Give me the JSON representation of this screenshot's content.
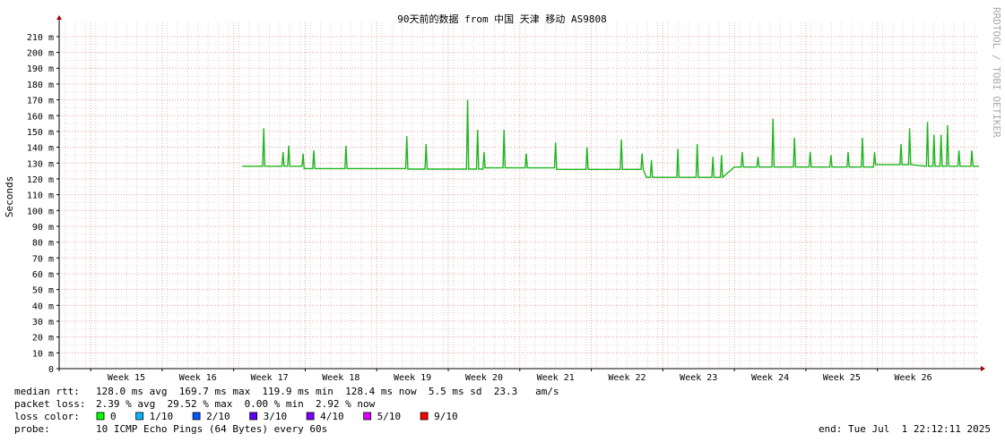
{
  "chart_data": {
    "type": "line",
    "title": "90天前的数据 from 中国 天津 移动 AS9808",
    "y_label": "Seconds",
    "watermark": "RRDTOOL / TOBI OETIKER",
    "xlim": [
      14.06,
      26.92
    ],
    "ylim": [
      0,
      0.219
    ],
    "xticks": [
      {
        "value": 15,
        "label": "Week 15"
      },
      {
        "value": 16,
        "label": "Week 16"
      },
      {
        "value": 17,
        "label": "Week 17"
      },
      {
        "value": 18,
        "label": "Week 18"
      },
      {
        "value": 19,
        "label": "Week 19"
      },
      {
        "value": 20,
        "label": "Week 20"
      },
      {
        "value": 21,
        "label": "Week 21"
      },
      {
        "value": 22,
        "label": "Week 22"
      },
      {
        "value": 23,
        "label": "Week 23"
      },
      {
        "value": 24,
        "label": "Week 24"
      },
      {
        "value": 25,
        "label": "Week 25"
      },
      {
        "value": 26,
        "label": "Week 26"
      }
    ],
    "yticks": [
      0,
      {
        "value": 0.01,
        "label": "10 m"
      },
      {
        "value": 0.02,
        "label": "20 m"
      },
      {
        "value": 0.03,
        "label": "30 m"
      },
      {
        "value": 0.04,
        "label": "40 m"
      },
      {
        "value": 0.05,
        "label": "50 m"
      },
      {
        "value": 0.06,
        "label": "60 m"
      },
      {
        "value": 0.07,
        "label": "70 m"
      },
      {
        "value": 0.08,
        "label": "80 m"
      },
      {
        "value": 0.09,
        "label": "90 m"
      },
      {
        "value": 0.1,
        "label": "100 m"
      },
      {
        "value": 0.11,
        "label": "110 m"
      },
      {
        "value": 0.12,
        "label": "120 m"
      },
      {
        "value": 0.13,
        "label": "130 m"
      },
      {
        "value": 0.14,
        "label": "140 m"
      },
      {
        "value": 0.15,
        "label": "150 m"
      },
      {
        "value": 0.16,
        "label": "160 m"
      },
      {
        "value": 0.17,
        "label": "170 m"
      },
      {
        "value": 0.18,
        "label": "180 m"
      },
      {
        "value": 0.19,
        "label": "190 m"
      },
      {
        "value": 0.2,
        "label": "200 m"
      },
      {
        "value": 0.21,
        "label": "210 m"
      }
    ],
    "grid": true,
    "line_color": "#1fb51f",
    "x": [
      16.62,
      16.905,
      16.92,
      16.935,
      17.175,
      17.19,
      17.205,
      17.255,
      17.27,
      17.285,
      17.455,
      17.47,
      17.485,
      17.605,
      17.62,
      17.635,
      18.055,
      18.07,
      18.085,
      18.905,
      18.92,
      18.935,
      19.175,
      19.19,
      19.205,
      19.755,
      19.77,
      19.785,
      19.895,
      19.91,
      19.925,
      19.985,
      20.0,
      20.015,
      20.265,
      20.28,
      20.295,
      20.575,
      20.59,
      20.605,
      20.985,
      21.0,
      21.015,
      21.425,
      21.44,
      21.455,
      21.905,
      21.92,
      21.935,
      22.195,
      22.21,
      22.225,
      22.27,
      22.325,
      22.34,
      22.355,
      22.695,
      22.71,
      22.725,
      22.965,
      22.98,
      22.995,
      23.185,
      23.2,
      23.215,
      23.305,
      23.32,
      23.335,
      23.5,
      23.595,
      23.61,
      23.625,
      23.815,
      23.83,
      23.845,
      24.025,
      24.04,
      24.055,
      24.325,
      24.34,
      24.355,
      24.545,
      24.56,
      24.575,
      24.835,
      24.85,
      24.865,
      25.075,
      25.09,
      25.105,
      25.275,
      25.29,
      25.305,
      25.445,
      25.46,
      25.475,
      25.815,
      25.83,
      25.845,
      25.935,
      25.95,
      25.965,
      26.185,
      26.2,
      26.215,
      26.275,
      26.29,
      26.305,
      26.375,
      26.39,
      26.405,
      26.465,
      26.48,
      26.495,
      26.625,
      26.64,
      26.655,
      26.805,
      26.82,
      26.835,
      26.92
    ],
    "values": [
      0.128,
      0.128,
      0.152,
      0.128,
      0.128,
      0.137,
      0.128,
      0.128,
      0.141,
      0.128,
      0.128,
      0.136,
      0.1265,
      0.1265,
      0.138,
      0.1265,
      0.1265,
      0.141,
      0.1265,
      0.1265,
      0.147,
      0.1262,
      0.1262,
      0.142,
      0.1262,
      0.1262,
      0.17,
      0.1262,
      0.1262,
      0.151,
      0.1262,
      0.1262,
      0.137,
      0.127,
      0.127,
      0.151,
      0.127,
      0.127,
      0.136,
      0.127,
      0.127,
      0.143,
      0.126,
      0.126,
      0.14,
      0.126,
      0.126,
      0.145,
      0.126,
      0.126,
      0.136,
      0.126,
      0.121,
      0.121,
      0.132,
      0.121,
      0.121,
      0.139,
      0.121,
      0.121,
      0.142,
      0.121,
      0.121,
      0.134,
      0.121,
      0.121,
      0.135,
      0.121,
      0.1275,
      0.1275,
      0.137,
      0.1275,
      0.1275,
      0.134,
      0.1275,
      0.1275,
      0.158,
      0.1275,
      0.1275,
      0.146,
      0.1275,
      0.1275,
      0.137,
      0.1275,
      0.1275,
      0.135,
      0.1275,
      0.1275,
      0.137,
      0.1275,
      0.1275,
      0.146,
      0.1275,
      0.1275,
      0.137,
      0.129,
      0.129,
      0.142,
      0.129,
      0.129,
      0.152,
      0.129,
      0.128,
      0.156,
      0.128,
      0.128,
      0.148,
      0.128,
      0.128,
      0.148,
      0.128,
      0.128,
      0.154,
      0.128,
      0.128,
      0.138,
      0.128,
      0.128,
      0.138,
      0.128,
      0.128
    ],
    "stats": [
      {
        "label": "median rtt:",
        "text": "128.0 ms avg  169.7 ms max  119.9 ms min  128.4 ms now  5.5 ms sd  23.3   am/s"
      },
      {
        "label": "packet loss:",
        "text": "2.39 % avg  29.52 % max  0.00 % min  2.92 % now"
      }
    ],
    "loss_legend_label": "loss color:",
    "loss_colors": [
      {
        "label": "0",
        "color": "#00ff00"
      },
      {
        "label": "1/10",
        "color": "#00b8ff"
      },
      {
        "label": "2/10",
        "color": "#0059ff"
      },
      {
        "label": "3/10",
        "color": "#5e00ff"
      },
      {
        "label": "4/10",
        "color": "#7e00ff"
      },
      {
        "label": "5/10",
        "color": "#dd00ff"
      },
      {
        "label": "9/10",
        "color": "#ff0000"
      }
    ],
    "probe_label": "probe:",
    "probe": "10 ICMP Echo Pings (64 Bytes) every 60s",
    "end": "end: Tue Jul  1 22:12:11 2025"
  }
}
